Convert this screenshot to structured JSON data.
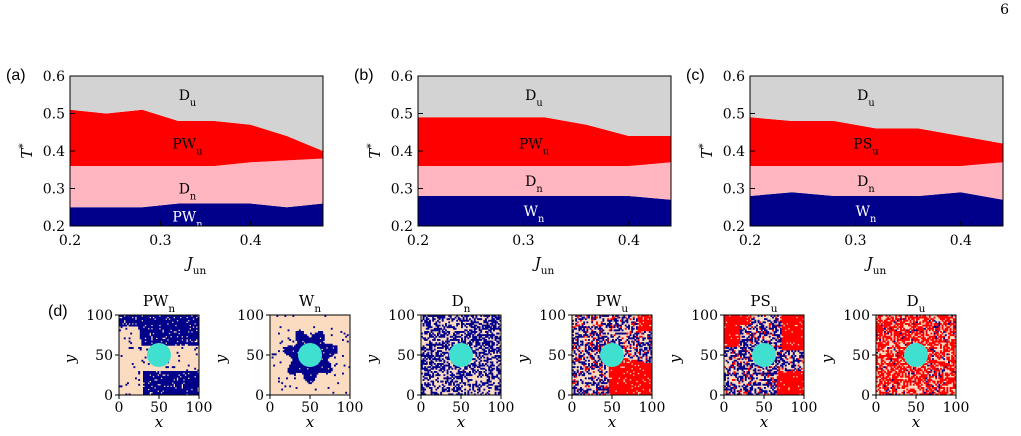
{
  "page_number": "6",
  "colors": {
    "D_u": "#d3d3d3",
    "PW_u": "#ff0000",
    "D_n": "#ffb6c1",
    "W_n": "#00008b",
    "background_tan": "#fcdcc0",
    "particle": "#40e0d0"
  },
  "chart_data": [
    {
      "type": "area",
      "panel_label": "(a)",
      "xlabel_main": "J",
      "xlabel_sub": "un",
      "ylabel_main": "T",
      "ylabel_sup": "*",
      "xlim": [
        0.2,
        0.48
      ],
      "ylim": [
        0.2,
        0.6
      ],
      "xticks": [
        0.2,
        0.3,
        0.4
      ],
      "xtick_labels": [
        "0.2",
        "0.3",
        "0.4"
      ],
      "yticks": [
        0.2,
        0.3,
        0.4,
        0.5,
        0.6
      ],
      "ytick_labels": [
        "0.2",
        "0.3",
        "0.4",
        "0.5",
        "0.6"
      ],
      "x": [
        0.2,
        0.24,
        0.28,
        0.32,
        0.36,
        0.4,
        0.44,
        0.48
      ],
      "boundaries": [
        [
          0.25,
          0.25,
          0.25,
          0.26,
          0.26,
          0.26,
          0.25,
          0.26
        ],
        [
          0.36,
          0.36,
          0.36,
          0.36,
          0.36,
          0.37,
          0.375,
          0.38
        ],
        [
          0.51,
          0.5,
          0.51,
          0.48,
          0.48,
          0.47,
          0.44,
          0.4
        ]
      ],
      "phases": [
        {
          "main": "PW",
          "sub": "n",
          "color": "#00008b",
          "text_color": "#ffffff",
          "label_x": 0.33,
          "label_y": 0.225
        },
        {
          "main": "D",
          "sub": "n",
          "color": "#ffb6c1",
          "text_color": "#000000",
          "label_x": 0.33,
          "label_y": 0.3
        },
        {
          "main": "PW",
          "sub": "u",
          "color": "#ff0000",
          "text_color": "#000000",
          "label_x": 0.33,
          "label_y": 0.42
        },
        {
          "main": "D",
          "sub": "u",
          "color": "#d3d3d3",
          "text_color": "#000000",
          "label_x": 0.33,
          "label_y": 0.55
        }
      ]
    },
    {
      "type": "area",
      "panel_label": "(b)",
      "xlabel_main": "J",
      "xlabel_sub": "un",
      "ylabel_main": "T",
      "ylabel_sup": "*",
      "xlim": [
        0.2,
        0.44
      ],
      "ylim": [
        0.2,
        0.6
      ],
      "xticks": [
        0.2,
        0.3,
        0.4
      ],
      "xtick_labels": [
        "0.2",
        "0.3",
        "0.4"
      ],
      "yticks": [
        0.2,
        0.3,
        0.4,
        0.5,
        0.6
      ],
      "ytick_labels": [
        "0.2",
        "0.3",
        "0.4",
        "0.5",
        "0.6"
      ],
      "x": [
        0.2,
        0.24,
        0.28,
        0.32,
        0.36,
        0.4,
        0.44
      ],
      "boundaries": [
        [
          0.28,
          0.28,
          0.28,
          0.28,
          0.28,
          0.28,
          0.27
        ],
        [
          0.36,
          0.36,
          0.36,
          0.36,
          0.36,
          0.36,
          0.37
        ],
        [
          0.49,
          0.49,
          0.49,
          0.49,
          0.47,
          0.44,
          0.44
        ]
      ],
      "phases": [
        {
          "main": "W",
          "sub": "n",
          "color": "#00008b",
          "text_color": "#ffffff",
          "label_x": 0.31,
          "label_y": 0.24
        },
        {
          "main": "D",
          "sub": "n",
          "color": "#ffb6c1",
          "text_color": "#000000",
          "label_x": 0.31,
          "label_y": 0.32
        },
        {
          "main": "PW",
          "sub": "u",
          "color": "#ff0000",
          "text_color": "#000000",
          "label_x": 0.31,
          "label_y": 0.42
        },
        {
          "main": "D",
          "sub": "u",
          "color": "#d3d3d3",
          "text_color": "#000000",
          "label_x": 0.31,
          "label_y": 0.55
        }
      ]
    },
    {
      "type": "area",
      "panel_label": "(c)",
      "xlabel_main": "J",
      "xlabel_sub": "un",
      "ylabel_main": "T",
      "ylabel_sup": "*",
      "xlim": [
        0.2,
        0.44
      ],
      "ylim": [
        0.2,
        0.6
      ],
      "xticks": [
        0.2,
        0.3,
        0.4
      ],
      "xtick_labels": [
        "0.2",
        "0.3",
        "0.4"
      ],
      "yticks": [
        0.2,
        0.3,
        0.4,
        0.5,
        0.6
      ],
      "ytick_labels": [
        "0.2",
        "0.3",
        "0.4",
        "0.5",
        "0.6"
      ],
      "x": [
        0.2,
        0.24,
        0.28,
        0.32,
        0.36,
        0.4,
        0.44
      ],
      "boundaries": [
        [
          0.28,
          0.29,
          0.28,
          0.28,
          0.28,
          0.29,
          0.27
        ],
        [
          0.36,
          0.36,
          0.36,
          0.36,
          0.36,
          0.36,
          0.37
        ],
        [
          0.49,
          0.48,
          0.48,
          0.46,
          0.46,
          0.44,
          0.42
        ]
      ],
      "phases": [
        {
          "main": "W",
          "sub": "n",
          "color": "#00008b",
          "text_color": "#ffffff",
          "label_x": 0.31,
          "label_y": 0.24
        },
        {
          "main": "D",
          "sub": "n",
          "color": "#ffb6c1",
          "text_color": "#000000",
          "label_x": 0.31,
          "label_y": 0.32
        },
        {
          "main": "PS",
          "sub": "u",
          "color": "#ff0000",
          "text_color": "#000000",
          "label_x": 0.31,
          "label_y": 0.42
        },
        {
          "main": "D",
          "sub": "u",
          "color": "#d3d3d3",
          "text_color": "#000000",
          "label_x": 0.31,
          "label_y": 0.55
        }
      ]
    },
    {
      "type": "heatmap",
      "panel_label": "(d)",
      "xlabel": "x",
      "ylabel": "y",
      "xlim": [
        0,
        100
      ],
      "ylim": [
        0,
        100
      ],
      "xtick_labels": [
        "0",
        "50",
        "100"
      ],
      "ytick_labels": [
        "0",
        "50",
        "100"
      ],
      "obstacle": {
        "cx": 50,
        "cy": 50,
        "r": 15
      },
      "snapshots": [
        {
          "main": "PW",
          "sub": "n",
          "pattern": "PW_n"
        },
        {
          "main": "W",
          "sub": "n",
          "pattern": "W_n"
        },
        {
          "main": "D",
          "sub": "n",
          "pattern": "D_n"
        },
        {
          "main": "PW",
          "sub": "u",
          "pattern": "PW_u"
        },
        {
          "main": "PS",
          "sub": "u",
          "pattern": "PS_u"
        },
        {
          "main": "D",
          "sub": "u",
          "pattern": "D_u"
        }
      ]
    }
  ]
}
